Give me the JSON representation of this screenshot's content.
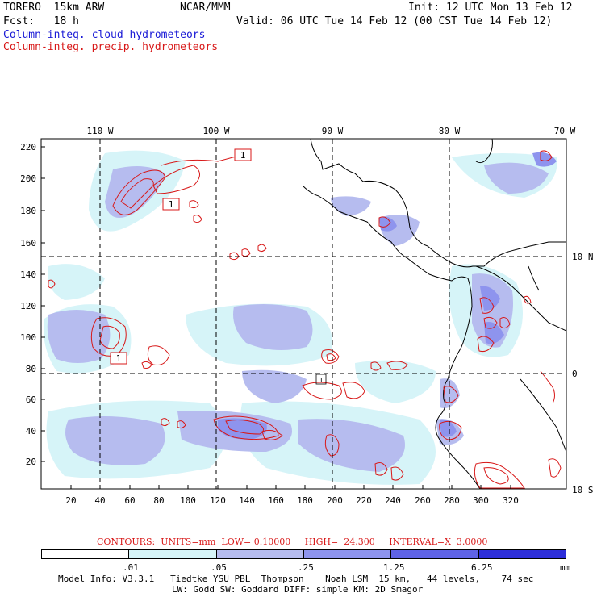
{
  "header": {
    "model": "TORERO  15km ARW",
    "org": "NCAR/MMM",
    "init": "Init: 12 UTC Mon 13 Feb 12",
    "fcst": "Fcst:   18 h",
    "valid": "Valid: 06 UTC Tue 14 Feb 12 (00 CST Tue 14 Feb 12)",
    "field1": "Column-integ. cloud hydrometeors",
    "field2": "Column-integ. precip. hydrometeors"
  },
  "colors": {
    "cloud_field": "#1a1ad6",
    "precip_contour": "#d81818",
    "shade_levels": [
      "#ffffff",
      "#d6f4f8",
      "#b6bcef",
      "#8e94ee",
      "#5f63e6",
      "#2d2ed9"
    ]
  },
  "map": {
    "lon_labels": [
      "110 W",
      "100 W",
      "90 W",
      "80 W",
      "70 W"
    ],
    "lat_labels": [
      "10 N",
      "0",
      "10 S"
    ],
    "y_ticks": [
      "20",
      "40",
      "60",
      "80",
      "100",
      "120",
      "140",
      "160",
      "180",
      "200",
      "220"
    ],
    "x_ticks": [
      "20",
      "40",
      "60",
      "80",
      "100",
      "120",
      "140",
      "160",
      "180",
      "200",
      "220",
      "240",
      "260",
      "280",
      "300",
      "320"
    ],
    "low_markers": [
      "1",
      "1",
      "1",
      "1"
    ]
  },
  "contour_info": {
    "text": "CONTOURS:  UNITS=mm  LOW= 0.10000     HIGH=  24.300     INTERVAL=X  3.0000"
  },
  "colorbar": {
    "labels": [
      ".01",
      ".05",
      ".25",
      "1.25",
      "6.25"
    ],
    "unit": "mm"
  },
  "footer": {
    "line1": "Model Info: V3.3.1   Tiedtke YSU PBL  Thompson    Noah LSM  15 km,   44 levels,    74 sec",
    "line2": "LW: Godd SW: Goddard DIFF: simple KM: 2D Smagor"
  }
}
